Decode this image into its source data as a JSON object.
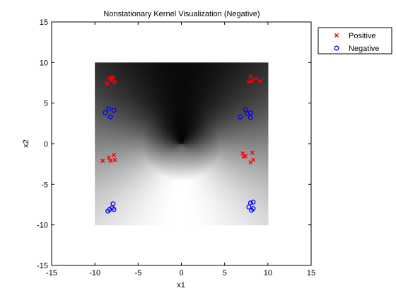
{
  "chart_data": {
    "type": "scatter",
    "title": "Nonstationary Kernel Visualization (Negative)",
    "xlabel": "x1",
    "ylabel": "x2",
    "xlim": [
      -15,
      15
    ],
    "ylim": [
      -15,
      15
    ],
    "xticks": [
      -15,
      -10,
      -5,
      0,
      5,
      10,
      15
    ],
    "yticks": [
      -15,
      -10,
      -5,
      0,
      5,
      10,
      15
    ],
    "heatmap": {
      "x_range": [
        -10,
        10
      ],
      "y_range": [
        -10,
        10
      ],
      "description_colormap": "gray"
    },
    "legend_position": "outside top-right",
    "series": [
      {
        "name": "Positive",
        "marker": "x",
        "color": "#ff0000",
        "points": [
          [
            -8.3,
            8.1
          ],
          [
            -7.9,
            8.2
          ],
          [
            -8.1,
            7.8
          ],
          [
            -8.6,
            7.4
          ],
          [
            -7.7,
            7.6
          ],
          [
            -8.0,
            8.0
          ],
          [
            8.0,
            8.3
          ],
          [
            8.6,
            8.0
          ],
          [
            8.1,
            7.7
          ],
          [
            7.8,
            7.6
          ],
          [
            9.1,
            7.7
          ],
          [
            -9.1,
            -2.1
          ],
          [
            -8.4,
            -1.7
          ],
          [
            -7.8,
            -1.4
          ],
          [
            -8.2,
            -2.1
          ],
          [
            -7.7,
            -2.0
          ],
          [
            7.1,
            -1.2
          ],
          [
            7.4,
            -1.5
          ],
          [
            8.2,
            -1.1
          ],
          [
            8.0,
            -2.3
          ],
          [
            8.3,
            -2.0
          ],
          [
            7.2,
            -1.6
          ]
        ]
      },
      {
        "name": "Negative",
        "marker": "o",
        "color": "#0000ff",
        "points": [
          [
            -8.8,
            3.8
          ],
          [
            -8.4,
            4.3
          ],
          [
            -7.8,
            4.1
          ],
          [
            -8.2,
            3.3
          ],
          [
            7.4,
            4.2
          ],
          [
            8.0,
            3.8
          ],
          [
            6.8,
            3.3
          ],
          [
            7.6,
            3.7
          ],
          [
            8.0,
            3.2
          ],
          [
            -8.3,
            -8.1
          ],
          [
            -7.9,
            -7.4
          ],
          [
            -7.8,
            -8.1
          ],
          [
            -8.0,
            -7.9
          ],
          [
            -8.5,
            -8.3
          ],
          [
            8.0,
            -7.3
          ],
          [
            8.3,
            -7.2
          ],
          [
            8.1,
            -8.2
          ],
          [
            7.8,
            -7.8
          ],
          [
            8.3,
            -8.0
          ]
        ]
      }
    ]
  }
}
